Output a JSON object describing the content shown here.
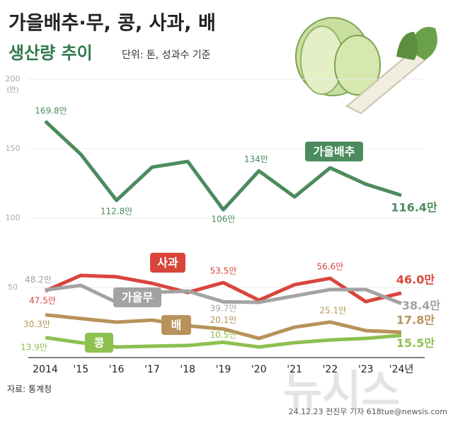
{
  "chart_data": {
    "type": "line",
    "title": "가을배추·무, 콩, 사과, 배",
    "subtitle": "생산량 추이",
    "unit_note": "단위: 톤, 성과수 기준",
    "y_unit": "(만)",
    "source": "자료: 통계청",
    "credit": "24.12.23 전진우 기자 618tue@newsis.com",
    "watermark": "뉴시스",
    "categories": [
      "2014",
      "'15",
      "'16",
      "'17",
      "'18",
      "'19",
      "'20",
      "'21",
      "'22",
      "'23",
      "'24년"
    ],
    "ylim": [
      0,
      200
    ],
    "yticks": [
      50,
      100,
      150,
      200
    ],
    "grid": true,
    "series": [
      {
        "name": "가을배추",
        "color": "#4b8b5d",
        "values": [
          169.8,
          145.9,
          112.8,
          136.7,
          140.8,
          106,
          134,
          115.3,
          136.2,
          124.5,
          116.4
        ],
        "value_labels": [
          "169.8만",
          null,
          "112.8만",
          null,
          null,
          "106만",
          "134만",
          null,
          null,
          null,
          "116.4만"
        ]
      },
      {
        "name": "사과",
        "color": "#d9453b",
        "values": [
          47.5,
          58.7,
          57.7,
          53,
          46.4,
          53.5,
          40.8,
          52,
          56.6,
          39.8,
          46.0
        ],
        "value_labels": [
          "47.5만",
          null,
          null,
          null,
          null,
          "53.5만",
          null,
          null,
          "56.6만",
          null,
          "46.0만"
        ]
      },
      {
        "name": "가을무",
        "color": "#a3a3a3",
        "values": [
          48.2,
          51.5,
          39.3,
          46.4,
          47.4,
          39.7,
          39.3,
          43.9,
          48.5,
          48.5,
          38.4
        ],
        "value_labels": [
          "48.2만",
          null,
          null,
          null,
          null,
          "39.7만",
          null,
          null,
          null,
          null,
          "38.4만"
        ]
      },
      {
        "name": "배",
        "color": "#b8925a",
        "values": [
          30.3,
          27.6,
          25,
          26.5,
          22.4,
          20.1,
          13.3,
          21.4,
          25.1,
          18.9,
          17.8
        ],
        "value_labels": [
          "30.3만",
          null,
          null,
          null,
          null,
          "20.1만",
          null,
          null,
          "25.1만",
          null,
          "17.8만"
        ]
      },
      {
        "name": "콩",
        "color": "#8dc04f",
        "values": [
          13.9,
          10.2,
          7.1,
          7.7,
          8.2,
          10.5,
          7.1,
          10.2,
          12.2,
          13.3,
          15.5
        ],
        "value_labels": [
          "13.9만",
          null,
          null,
          null,
          null,
          "10.5만",
          null,
          null,
          null,
          null,
          "15.5만"
        ]
      }
    ]
  }
}
